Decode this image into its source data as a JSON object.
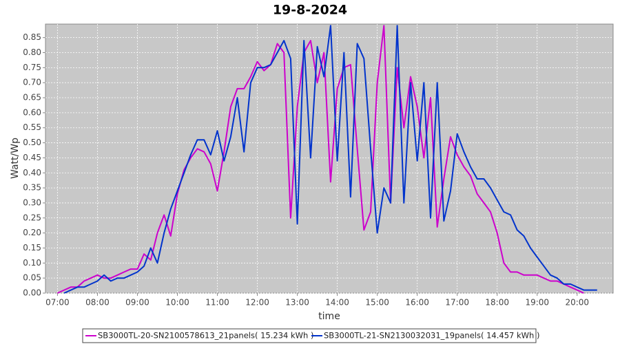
{
  "chart_data": {
    "type": "line",
    "title": "19-8-2024",
    "x_label": "time",
    "y_label": "Watt/Wp",
    "x": [
      "07:00",
      "07:10",
      "07:20",
      "07:30",
      "07:40",
      "07:50",
      "08:00",
      "08:10",
      "08:20",
      "08:30",
      "08:40",
      "08:50",
      "09:00",
      "09:10",
      "09:20",
      "09:30",
      "09:40",
      "09:50",
      "10:00",
      "10:10",
      "10:20",
      "10:30",
      "10:40",
      "10:50",
      "11:00",
      "11:10",
      "11:20",
      "11:30",
      "11:40",
      "11:50",
      "12:00",
      "12:10",
      "12:20",
      "12:30",
      "12:40",
      "12:50",
      "13:00",
      "13:10",
      "13:20",
      "13:30",
      "13:40",
      "13:50",
      "14:00",
      "14:10",
      "14:20",
      "14:30",
      "14:40",
      "14:50",
      "15:00",
      "15:10",
      "15:20",
      "15:30",
      "15:40",
      "15:50",
      "16:00",
      "16:10",
      "16:20",
      "16:30",
      "16:40",
      "16:50",
      "17:00",
      "17:10",
      "17:20",
      "17:30",
      "17:40",
      "17:50",
      "18:00",
      "18:10",
      "18:20",
      "18:30",
      "18:40",
      "18:50",
      "19:00",
      "19:10",
      "19:20",
      "19:30",
      "19:40",
      "19:50",
      "20:00",
      "20:10",
      "20:20",
      "20:30"
    ],
    "series": [
      {
        "name": "SB3000TL-20-SN2100578613_21panels( 15.234 kWh )",
        "color": "#cc00cc",
        "values": [
          0.0,
          0.01,
          0.02,
          0.02,
          0.04,
          0.05,
          0.06,
          0.05,
          0.05,
          0.06,
          0.07,
          0.08,
          0.08,
          0.13,
          0.11,
          0.2,
          0.26,
          0.19,
          0.33,
          0.41,
          0.45,
          0.48,
          0.47,
          0.43,
          0.34,
          0.47,
          0.62,
          0.68,
          0.68,
          0.72,
          0.77,
          0.74,
          0.76,
          0.83,
          0.8,
          0.25,
          0.62,
          0.8,
          0.84,
          0.7,
          0.8,
          0.37,
          0.68,
          0.75,
          0.76,
          0.48,
          0.21,
          0.27,
          0.7,
          0.89,
          0.3,
          0.75,
          0.55,
          0.72,
          0.62,
          0.45,
          0.65,
          0.22,
          0.38,
          0.52,
          0.46,
          0.42,
          0.39,
          0.33,
          0.3,
          0.27,
          0.2,
          0.1,
          0.07,
          0.07,
          0.06,
          0.06,
          0.06,
          0.05,
          0.04,
          0.04,
          0.03,
          0.02,
          0.01,
          0.0,
          null,
          null
        ]
      },
      {
        "name": "SB3000TL-21-SN2130032031_19panels( 14.457 kWh )",
        "color": "#0033cc",
        "values": [
          null,
          0.0,
          0.01,
          0.02,
          0.02,
          0.03,
          0.04,
          0.06,
          0.04,
          0.05,
          0.05,
          0.06,
          0.07,
          0.09,
          0.15,
          0.1,
          0.2,
          0.28,
          0.34,
          0.4,
          0.46,
          0.51,
          0.51,
          0.46,
          0.54,
          0.44,
          0.52,
          0.65,
          0.47,
          0.7,
          0.75,
          0.75,
          0.76,
          0.8,
          0.84,
          0.78,
          0.23,
          0.84,
          0.45,
          0.82,
          0.72,
          0.89,
          0.44,
          0.8,
          0.32,
          0.83,
          0.78,
          0.48,
          0.2,
          0.35,
          0.3,
          0.89,
          0.3,
          0.7,
          0.44,
          0.7,
          0.25,
          0.7,
          0.24,
          0.34,
          0.53,
          0.47,
          0.42,
          0.38,
          0.38,
          0.35,
          0.31,
          0.27,
          0.26,
          0.21,
          0.19,
          0.15,
          0.12,
          0.09,
          0.06,
          0.05,
          0.03,
          0.03,
          0.02,
          0.01,
          0.01,
          0.01
        ]
      }
    ],
    "xlim": [
      "06:42",
      "20:54"
    ],
    "xticks": [
      "07:00",
      "08:00",
      "09:00",
      "10:00",
      "11:00",
      "12:00",
      "13:00",
      "14:00",
      "15:00",
      "16:00",
      "17:00",
      "18:00",
      "19:00",
      "20:00"
    ],
    "ylim": [
      0,
      0.895
    ],
    "yticks": [
      {
        "value": 0,
        "label": "0.00"
      },
      {
        "value": 0.05,
        "label": "0.05"
      },
      {
        "value": 0.1,
        "label": "0.10"
      },
      {
        "value": 0.15,
        "label": "0.15"
      },
      {
        "value": 0.2,
        "label": "0.20"
      },
      {
        "value": 0.25,
        "label": "0.25"
      },
      {
        "value": 0.3,
        "label": "0.30"
      },
      {
        "value": 0.35,
        "label": "0.35"
      },
      {
        "value": 0.4,
        "label": "0.40"
      },
      {
        "value": 0.45,
        "label": "0.45"
      },
      {
        "value": 0.5,
        "label": "0.50"
      },
      {
        "value": 0.55,
        "label": "0.55"
      },
      {
        "value": 0.6,
        "label": "0.60"
      },
      {
        "value": 0.65,
        "label": "0.65"
      },
      {
        "value": 0.7,
        "label": "0.70"
      },
      {
        "value": 0.75,
        "label": "0.75"
      },
      {
        "value": 0.8,
        "label": "0.80"
      },
      {
        "value": 0.85,
        "label": "0.85"
      }
    ],
    "grid": true,
    "legend": "bottom"
  }
}
